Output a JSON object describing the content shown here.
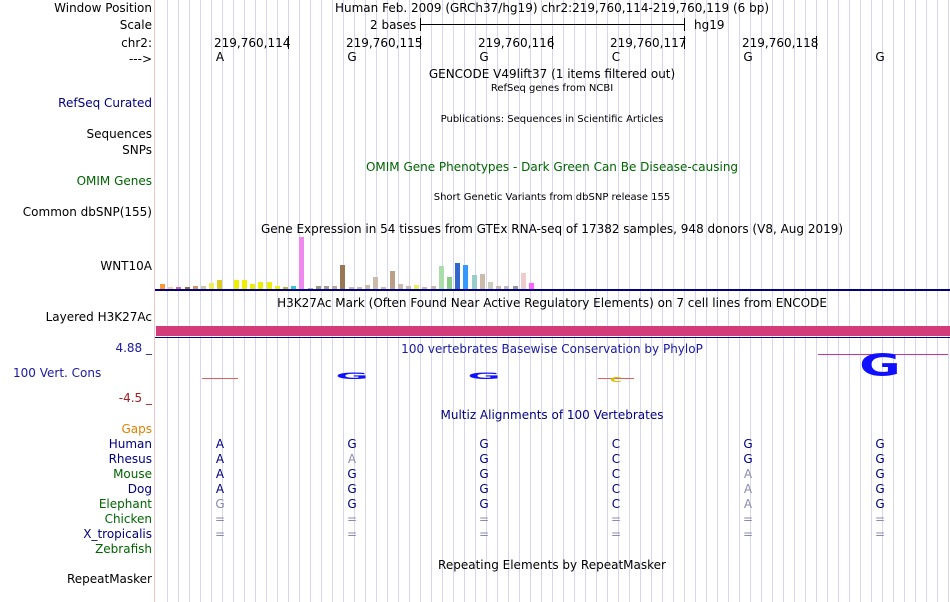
{
  "header": {
    "window_position_label": "Window Position",
    "window_position": "Human Feb. 2009 (GRCh37/hg19)   chr2:219,760,114-219,760,119 (6 bp)",
    "scale_label": "Scale",
    "scale_text": "2 bases",
    "assembly": "hg19",
    "chrom_label": "chr2:",
    "strand_label": "--->"
  },
  "positions": [
    "219,760,114",
    "219,760,115",
    "219,760,116",
    "219,760,117",
    "219,760,118"
  ],
  "sequence": [
    "A",
    "G",
    "G",
    "C",
    "G",
    "G"
  ],
  "tracks": {
    "gencode_title": "GENCODE V49lift37 (1 items filtered out)",
    "refseq_subtitle": "RefSeq genes from NCBI",
    "refseq_label": "RefSeq Curated",
    "publications_title": "Publications: Sequences in Scientific Articles",
    "sequences_label": "Sequences",
    "snps_label": "SNPs",
    "omim_title": "OMIM Gene Phenotypes - Dark Green Can Be Disease-causing",
    "omim_label": "OMIM Genes",
    "dbsnp_title": "Short Genetic Variants from dbSNP release 155",
    "dbsnp_label": "Common dbSNP(155)",
    "gtex_title": "Gene Expression in 54 tissues from GTEx RNA-seq of 17382 samples, 948 donors (V8, Aug 2019)",
    "gtex_label": "WNT10A",
    "h3k27ac_title": "H3K27Ac Mark (Often Found Near Active Regulatory Elements) on 7 cell lines from ENCODE",
    "h3k27ac_label": "Layered H3K27Ac",
    "phylop_title": "100 vertebrates Basewise Conservation by PhyloP",
    "phylop_label": "100 Vert. Cons",
    "phylop_max": "4.88 _",
    "phylop_min": "-4.5 _",
    "multiz_title": "Multiz Alignments of 100 Vertebrates",
    "gaps_label": "Gaps",
    "repeat_title": "Repeating Elements by RepeatMasker",
    "repeat_label": "RepeatMasker"
  },
  "colors": {
    "navy": "#000080",
    "omim_green": "#006400",
    "gaps_orange": "#e08000",
    "h3k27ac_pink": "#d23c78",
    "phylop_max_blue": "#1a1aa0",
    "phylop_min_red": "#a02020",
    "species_green": "#006400"
  },
  "species": [
    {
      "name": "Human",
      "bases": [
        "A",
        "G",
        "G",
        "C",
        "G",
        "G"
      ],
      "dim": [
        false,
        false,
        false,
        false,
        false,
        false
      ],
      "color": "#000080"
    },
    {
      "name": "Rhesus",
      "bases": [
        "A",
        "A",
        "G",
        "C",
        "G",
        "G"
      ],
      "dim": [
        false,
        true,
        false,
        false,
        false,
        false
      ],
      "color": "#000080"
    },
    {
      "name": "Mouse",
      "bases": [
        "A",
        "G",
        "G",
        "C",
        "A",
        "G"
      ],
      "dim": [
        false,
        false,
        false,
        false,
        true,
        false
      ],
      "color": "#006400"
    },
    {
      "name": "Dog",
      "bases": [
        "A",
        "G",
        "G",
        "C",
        "A",
        "G"
      ],
      "dim": [
        false,
        false,
        false,
        false,
        true,
        false
      ],
      "color": "#000080"
    },
    {
      "name": "Elephant",
      "bases": [
        "G",
        "G",
        "G",
        "C",
        "A",
        "G"
      ],
      "dim": [
        true,
        false,
        false,
        false,
        true,
        false
      ],
      "color": "#006400"
    },
    {
      "name": "Chicken",
      "bases": [
        "=",
        "=",
        "=",
        "=",
        "=",
        "="
      ],
      "dim": [
        true,
        true,
        true,
        true,
        true,
        true
      ],
      "color": "#006400"
    },
    {
      "name": "X_tropicalis",
      "bases": [
        "=",
        "=",
        "=",
        "=",
        "=",
        "="
      ],
      "dim": [
        true,
        true,
        true,
        true,
        true,
        true
      ],
      "color": "#000080"
    },
    {
      "name": "Zebrafish",
      "bases": [
        "",
        "",
        "",
        "",
        "",
        ""
      ],
      "dim": [
        false,
        false,
        false,
        false,
        false,
        false
      ],
      "color": "#006400"
    }
  ],
  "gtex_bars": [
    {
      "v": 0.1,
      "c": "#ff9933"
    },
    {
      "v": 0.03,
      "c": "#ffcc99"
    },
    {
      "v": 0.04,
      "c": "#cc6699"
    },
    {
      "v": 0.04,
      "c": "#996633"
    },
    {
      "v": 0.06,
      "c": "#cc9966"
    },
    {
      "v": 0.06,
      "c": "#cccc99"
    },
    {
      "v": 0.12,
      "c": "#eeee55"
    },
    {
      "v": 0.17,
      "c": "#ddcc22"
    },
    {
      "v": 0.02,
      "c": "#ffffff"
    },
    {
      "v": 0.17,
      "c": "#eeee00"
    },
    {
      "v": 0.17,
      "c": "#eeee00"
    },
    {
      "v": 0.1,
      "c": "#eeee00"
    },
    {
      "v": 0.13,
      "c": "#eeee00"
    },
    {
      "v": 0.13,
      "c": "#eeee00"
    },
    {
      "v": 0.06,
      "c": "#eeee00"
    },
    {
      "v": 0.04,
      "c": "#bbbb33"
    },
    {
      "v": 0.05,
      "c": "#33cccc"
    },
    {
      "v": 1.0,
      "c": "#ee88ee"
    },
    {
      "v": 0.02,
      "c": "#aaaaaa"
    },
    {
      "v": 0.06,
      "c": "#999977"
    },
    {
      "v": 0.06,
      "c": "#aa9988"
    },
    {
      "v": 0.05,
      "c": "#bbaa99"
    },
    {
      "v": 0.47,
      "c": "#997755"
    },
    {
      "v": 0.03,
      "c": "#ccbbaa"
    },
    {
      "v": 0.04,
      "c": "#ccbbaa"
    },
    {
      "v": 0.07,
      "c": "#ccbbaa"
    },
    {
      "v": 0.24,
      "c": "#ccbbaa"
    },
    {
      "v": 0.04,
      "c": "#ccbbaa"
    },
    {
      "v": 0.34,
      "c": "#bba088"
    },
    {
      "v": 0.1,
      "c": "#ccbbaa"
    },
    {
      "v": 0.05,
      "c": "#ccbbaa"
    },
    {
      "v": 0.08,
      "c": "#eeee55"
    },
    {
      "v": 0.03,
      "c": "#ccbbaa"
    },
    {
      "v": 0.05,
      "c": "#ccbbaa"
    },
    {
      "v": 0.44,
      "c": "#aaddaa"
    },
    {
      "v": 0.23,
      "c": "#88cc88"
    },
    {
      "v": 0.5,
      "c": "#3366cc"
    },
    {
      "v": 0.46,
      "c": "#3399ff"
    },
    {
      "v": 0.26,
      "c": "#99cccc"
    },
    {
      "v": 0.28,
      "c": "#ccbbaa"
    },
    {
      "v": 0.14,
      "c": "#ccccbb"
    },
    {
      "v": 0.06,
      "c": "#ccbbaa"
    },
    {
      "v": 0.06,
      "c": "#bbbbbb"
    },
    {
      "v": 0.06,
      "c": "#999999"
    },
    {
      "v": 0.3,
      "c": "#eecccc"
    },
    {
      "v": 0.12,
      "c": "#ff66ff"
    }
  ],
  "phylop": [
    {
      "base": "A",
      "value": -0.3
    },
    {
      "base": "G",
      "value": 1.6
    },
    {
      "base": "G",
      "value": 2.0
    },
    {
      "base": "C",
      "value": -1.0
    },
    {
      "base": "G",
      "value": 0.0
    },
    {
      "base": "G",
      "value": 4.88
    }
  ]
}
